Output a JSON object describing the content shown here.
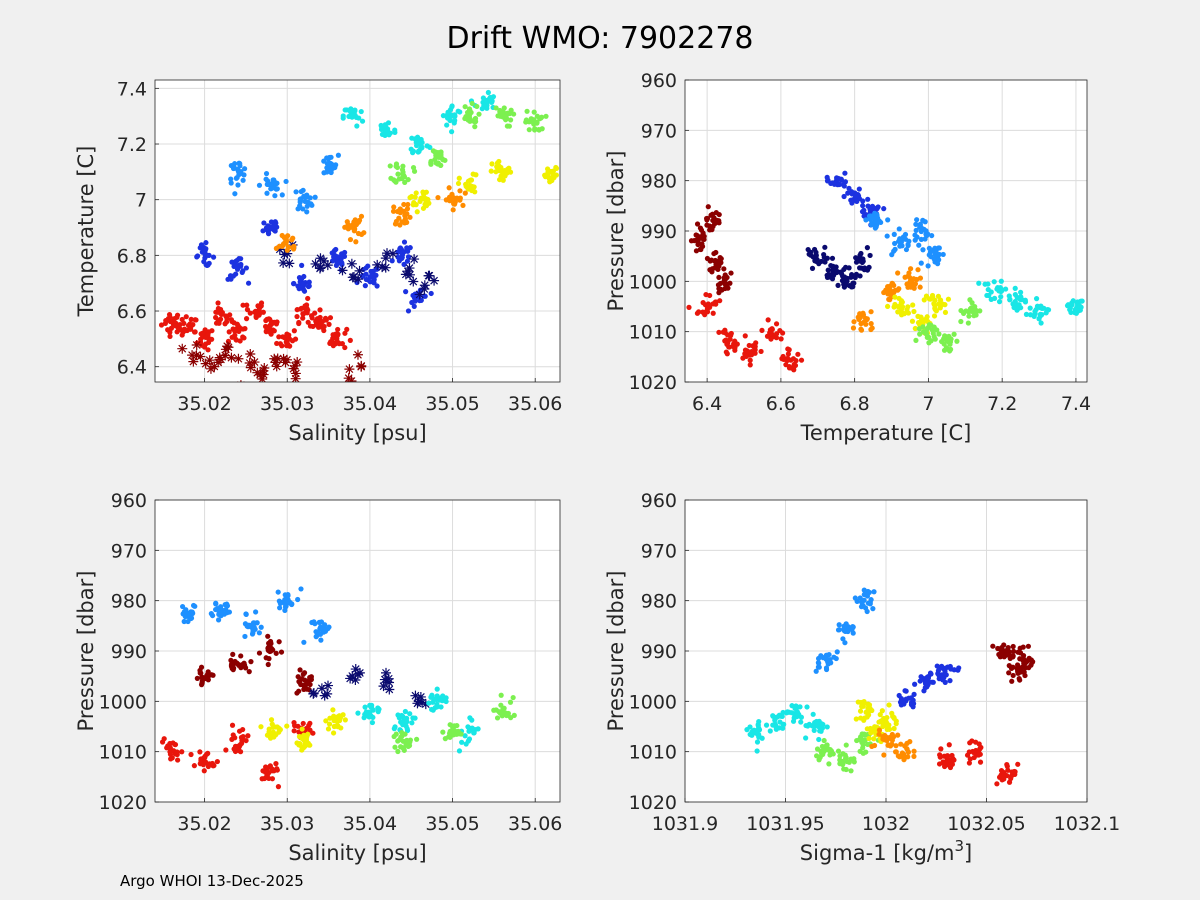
{
  "figure": {
    "title": "Drift WMO: 7902278",
    "footer": "Argo WHOI 13-Dec-2025"
  },
  "chart_data": [
    {
      "id": "ts",
      "type": "scatter",
      "xlabel": "Salinity [psu]",
      "ylabel": "Temperature [C]",
      "xlim": [
        35.014,
        35.063
      ],
      "ylim": [
        6.345,
        7.43
      ],
      "yreverse": false,
      "xticks": [
        35.02,
        35.03,
        35.04,
        35.05,
        35.06
      ],
      "xticklabels": [
        "35.02",
        "35.03",
        "35.04",
        "35.05",
        "35.06"
      ],
      "yticks": [
        6.4,
        6.6,
        6.8,
        7.0,
        7.2,
        7.4
      ],
      "yticklabels": [
        "6.4",
        "6.6",
        "6.8",
        "7",
        "7.2",
        "7.4"
      ],
      "grid": true,
      "series": [
        {
          "name": "cluster-red-low",
          "color": "#e8160c",
          "x": [
            35.016,
            35.018,
            35.02,
            35.022,
            35.024,
            35.026,
            35.028,
            35.03,
            35.032,
            35.034,
            35.036
          ],
          "y": [
            6.56,
            6.54,
            6.5,
            6.58,
            6.52,
            6.6,
            6.55,
            6.5,
            6.6,
            6.56,
            6.5
          ]
        },
        {
          "name": "cluster-darkred",
          "color": "#8b0000",
          "marker": "star",
          "x": [
            35.019,
            35.021,
            35.023,
            35.025,
            35.027,
            35.029,
            35.031,
            35.038
          ],
          "y": [
            6.46,
            6.42,
            6.44,
            6.4,
            6.38,
            6.42,
            6.4,
            6.4
          ]
        },
        {
          "name": "cluster-blue",
          "color": "#1c32e0",
          "x": [
            35.02,
            35.024,
            35.028,
            35.032,
            35.036,
            35.04,
            35.044,
            35.046
          ],
          "y": [
            6.8,
            6.75,
            6.9,
            6.7,
            6.78,
            6.72,
            6.8,
            6.65
          ]
        },
        {
          "name": "cluster-navy",
          "color": "#0a0a6e",
          "marker": "star",
          "x": [
            35.03,
            35.034,
            35.038,
            35.042,
            35.045,
            35.047
          ],
          "y": [
            6.8,
            6.78,
            6.75,
            6.78,
            6.74,
            6.7
          ]
        },
        {
          "name": "cluster-lightblue",
          "color": "#1e90ff",
          "x": [
            35.024,
            35.028,
            35.032,
            35.035
          ],
          "y": [
            7.1,
            7.05,
            7.0,
            7.12
          ]
        },
        {
          "name": "cluster-cyan",
          "color": "#19e6e6",
          "x": [
            35.038,
            35.042,
            35.046,
            35.05,
            35.054
          ],
          "y": [
            7.3,
            7.25,
            7.2,
            7.3,
            7.35
          ]
        },
        {
          "name": "cluster-green",
          "color": "#7cf050",
          "x": [
            35.044,
            35.048,
            35.052,
            35.056,
            35.06
          ],
          "y": [
            7.1,
            7.15,
            7.3,
            7.3,
            7.28
          ]
        },
        {
          "name": "cluster-yellow",
          "color": "#f0f000",
          "x": [
            35.046,
            35.052,
            35.056,
            35.062
          ],
          "y": [
            7.0,
            7.05,
            7.1,
            7.08
          ]
        },
        {
          "name": "cluster-orange",
          "color": "#ff8c00",
          "x": [
            35.03,
            35.038,
            35.044,
            35.05
          ],
          "y": [
            6.85,
            6.9,
            6.95,
            7.0
          ]
        }
      ]
    },
    {
      "id": "pt",
      "type": "scatter",
      "xlabel": "Temperature [C]",
      "ylabel": "Pressure [dbar]",
      "xlim": [
        6.34,
        7.43
      ],
      "ylim": [
        960,
        1020
      ],
      "yreverse": true,
      "xticks": [
        6.4,
        6.6,
        6.8,
        7.0,
        7.2,
        7.4
      ],
      "xticklabels": [
        "6.4",
        "6.6",
        "6.8",
        "7",
        "7.2",
        "7.4"
      ],
      "yticks": [
        960,
        970,
        980,
        990,
        1000,
        1010,
        1020
      ],
      "yticklabels": [
        "960",
        "970",
        "980",
        "990",
        "1000",
        "1010",
        "1020"
      ],
      "grid": true,
      "series": [
        {
          "name": "cluster-darkred",
          "color": "#8b0000",
          "x": [
            6.38,
            6.41,
            6.43,
            6.45
          ],
          "y": [
            992,
            988,
            996,
            1000
          ]
        },
        {
          "name": "cluster-red",
          "color": "#e8160c",
          "x": [
            6.4,
            6.46,
            6.52,
            6.58,
            6.62
          ],
          "y": [
            1005,
            1012,
            1014,
            1010,
            1016
          ]
        },
        {
          "name": "cluster-navy",
          "color": "#0a0a6e",
          "x": [
            6.7,
            6.74,
            6.78,
            6.82
          ],
          "y": [
            995,
            998,
            1000,
            996
          ]
        },
        {
          "name": "cluster-blue",
          "color": "#1c32e0",
          "x": [
            6.76,
            6.8,
            6.84
          ],
          "y": [
            980,
            983,
            986
          ]
        },
        {
          "name": "cluster-lightblue",
          "color": "#1e90ff",
          "x": [
            6.86,
            6.92,
            6.98,
            7.02
          ],
          "y": [
            988,
            992,
            990,
            995
          ]
        },
        {
          "name": "cluster-orange",
          "color": "#ff8c00",
          "x": [
            6.82,
            6.9,
            6.95
          ],
          "y": [
            1008,
            1002,
            1000
          ]
        },
        {
          "name": "cluster-yellow",
          "color": "#f0f000",
          "x": [
            6.92,
            6.98,
            7.02
          ],
          "y": [
            1005,
            1008,
            1004
          ]
        },
        {
          "name": "cluster-green",
          "color": "#7cf050",
          "x": [
            7.0,
            7.05,
            7.12
          ],
          "y": [
            1010,
            1012,
            1006
          ]
        },
        {
          "name": "cluster-cyan",
          "color": "#19e6e6",
          "x": [
            7.18,
            7.24,
            7.3,
            7.4
          ],
          "y": [
            1002,
            1004,
            1006,
            1005
          ]
        }
      ]
    },
    {
      "id": "ps",
      "type": "scatter",
      "xlabel": "Salinity [psu]",
      "ylabel": "Pressure [dbar]",
      "xlim": [
        35.014,
        35.063
      ],
      "ylim": [
        960,
        1020
      ],
      "yreverse": true,
      "xticks": [
        35.02,
        35.03,
        35.04,
        35.05,
        35.06
      ],
      "xticklabels": [
        "35.02",
        "35.03",
        "35.04",
        "35.05",
        "35.06"
      ],
      "yticks": [
        960,
        970,
        980,
        990,
        1000,
        1010,
        1020
      ],
      "yticklabels": [
        "960",
        "970",
        "980",
        "990",
        "1000",
        "1010",
        "1020"
      ],
      "grid": true,
      "series": [
        {
          "name": "cluster-lightblue",
          "color": "#1e90ff",
          "x": [
            35.018,
            35.022,
            35.026,
            35.03,
            35.034
          ],
          "y": [
            983,
            982,
            985,
            980,
            986
          ]
        },
        {
          "name": "cluster-darkred",
          "color": "#8b0000",
          "x": [
            35.02,
            35.024,
            35.028,
            35.032
          ],
          "y": [
            995,
            993,
            990,
            996
          ]
        },
        {
          "name": "cluster-navy",
          "color": "#0a0a6e",
          "marker": "star",
          "x": [
            35.034,
            35.038,
            35.042,
            35.046
          ],
          "y": [
            998,
            995,
            996,
            1000
          ]
        },
        {
          "name": "cluster-red",
          "color": "#e8160c",
          "x": [
            35.016,
            35.02,
            35.024,
            35.028,
            35.032
          ],
          "y": [
            1010,
            1012,
            1008,
            1014,
            1006
          ]
        },
        {
          "name": "cluster-cyan",
          "color": "#19e6e6",
          "x": [
            35.04,
            35.044,
            35.048,
            35.052
          ],
          "y": [
            1002,
            1004,
            1000,
            1006
          ]
        },
        {
          "name": "cluster-green",
          "color": "#7cf050",
          "x": [
            35.044,
            35.05,
            35.056
          ],
          "y": [
            1008,
            1006,
            1002
          ]
        },
        {
          "name": "cluster-yellow",
          "color": "#f0f000",
          "x": [
            35.028,
            35.032,
            35.036
          ],
          "y": [
            1006,
            1008,
            1004
          ]
        }
      ]
    },
    {
      "id": "psig",
      "type": "scatter",
      "xlabel": "Sigma-1 [kg/m",
      "xlabel_sup": "3",
      "xlabel_end": "]",
      "ylabel": "Pressure [dbar]",
      "xlim": [
        1031.9,
        1032.1
      ],
      "ylim": [
        960,
        1020
      ],
      "yreverse": true,
      "xticks": [
        1031.9,
        1031.95,
        1032.0,
        1032.05,
        1032.1
      ],
      "xticklabels": [
        "1031.9",
        "1031.95",
        "1032",
        "1032.05",
        "1032.1"
      ],
      "yticks": [
        960,
        970,
        980,
        990,
        1000,
        1010,
        1020
      ],
      "yticklabels": [
        "960",
        "970",
        "980",
        "990",
        "1000",
        "1010",
        "1020"
      ],
      "grid": true,
      "series": [
        {
          "name": "cluster-cyan",
          "color": "#19e6e6",
          "x": [
            1031.935,
            1031.945,
            1031.955,
            1031.965
          ],
          "y": [
            1006,
            1004,
            1002,
            1005
          ]
        },
        {
          "name": "cluster-lightblue",
          "color": "#1e90ff",
          "x": [
            1031.97,
            1031.98,
            1031.99
          ],
          "y": [
            992,
            986,
            980
          ]
        },
        {
          "name": "cluster-green",
          "color": "#7cf050",
          "x": [
            1031.97,
            1031.98,
            1031.99
          ],
          "y": [
            1010,
            1012,
            1008
          ]
        },
        {
          "name": "cluster-yellow",
          "color": "#f0f000",
          "x": [
            1031.99,
            1031.995,
            1032.0
          ],
          "y": [
            1002,
            1006,
            1004
          ]
        },
        {
          "name": "cluster-orange",
          "color": "#ff8c00",
          "x": [
            1032.0,
            1032.008
          ],
          "y": [
            1008,
            1010
          ]
        },
        {
          "name": "cluster-blue",
          "color": "#1c32e0",
          "x": [
            1032.01,
            1032.02,
            1032.03
          ],
          "y": [
            1000,
            996,
            994
          ]
        },
        {
          "name": "cluster-red",
          "color": "#e8160c",
          "x": [
            1032.03,
            1032.045,
            1032.06
          ],
          "y": [
            1012,
            1010,
            1014
          ]
        },
        {
          "name": "cluster-darkred",
          "color": "#8b0000",
          "x": [
            1032.06,
            1032.065,
            1032.07
          ],
          "y": [
            990,
            994,
            992
          ]
        }
      ]
    }
  ]
}
